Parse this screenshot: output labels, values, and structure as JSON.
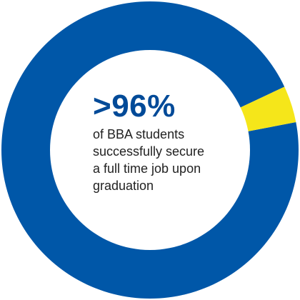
{
  "chart_data": {
    "type": "pie",
    "series": [
      {
        "values": [
          96,
          4
        ]
      }
    ],
    "colors": {
      "main": "#0057a8",
      "remainder": "#f5e61a",
      "center": "#ffffff"
    },
    "headline": ">96%",
    "caption_lines": [
      "of BBA students",
      "successfully secure",
      "a full time job upon",
      "graduation"
    ]
  }
}
